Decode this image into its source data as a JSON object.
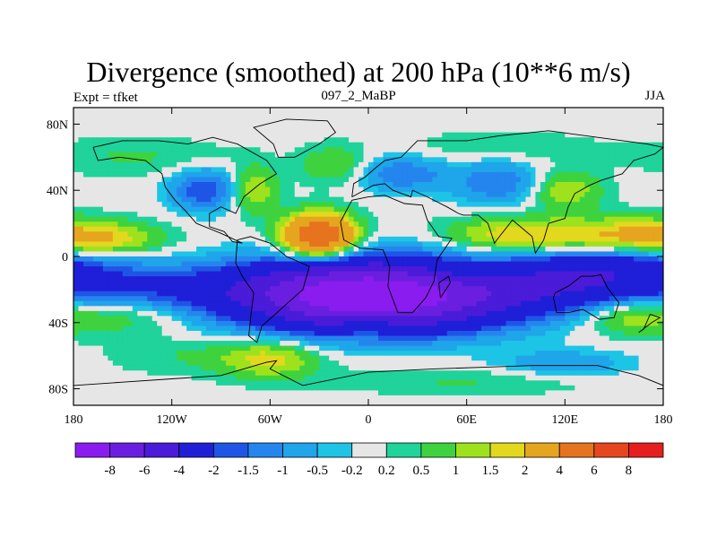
{
  "title": "Divergence (smoothed) at 200 hPa (10**6 m/s)",
  "subtitle_left": "Expt = tfket",
  "subtitle_center": "097_2_MaBP",
  "subtitle_right": "JJA",
  "chart_data": {
    "type": "heatmap",
    "title": "Divergence (smoothed) at 200 hPa (10**6 m/s)",
    "xlim": [
      -180,
      180
    ],
    "ylim": [
      -90,
      90
    ],
    "x_ticks": [
      {
        "value": -180,
        "label": "180"
      },
      {
        "value": -120,
        "label": "120W"
      },
      {
        "value": -60,
        "label": "60W"
      },
      {
        "value": 0,
        "label": "0"
      },
      {
        "value": 60,
        "label": "60E"
      },
      {
        "value": 120,
        "label": "120E"
      },
      {
        "value": 180,
        "label": "180"
      }
    ],
    "y_ticks": [
      {
        "value": 80,
        "label": "80N"
      },
      {
        "value": 40,
        "label": "40N"
      },
      {
        "value": 0,
        "label": "0"
      },
      {
        "value": -40,
        "label": "40S"
      },
      {
        "value": -80,
        "label": "80S"
      }
    ],
    "colorbar": {
      "levels": [
        "-8",
        "-6",
        "-4",
        "-2",
        "-1.5",
        "-1",
        "-0.5",
        "-0.2",
        "0.2",
        "0.5",
        "1",
        "1.5",
        "2",
        "4",
        "6",
        "8"
      ],
      "colors": [
        "#8a1cf0",
        "#6a1fe0",
        "#4a1bd8",
        "#1f1fd8",
        "#1f55e6",
        "#2585ee",
        "#1fa5ea",
        "#1dc4e6",
        "#e6e6e6",
        "#1fd39a",
        "#3ed33e",
        "#9ee21e",
        "#e2d81e",
        "#e6a51e",
        "#e6731e",
        "#e6461e",
        "#e61e1e"
      ]
    },
    "features": [
      {
        "lon": 10,
        "lat": -28,
        "value": -6,
        "sx": 55,
        "sy": 13
      },
      {
        "lon": -15,
        "lat": -20,
        "value": -4,
        "sx": 50,
        "sy": 14
      },
      {
        "lon": 60,
        "lat": -15,
        "value": -2,
        "sx": 70,
        "sy": 12
      },
      {
        "lon": 130,
        "lat": -18,
        "value": -2,
        "sx": 50,
        "sy": 10
      },
      {
        "lon": -120,
        "lat": -20,
        "value": -1.5,
        "sx": 55,
        "sy": 10
      },
      {
        "lon": 150,
        "lat": -5,
        "value": -2,
        "sx": 40,
        "sy": 8
      },
      {
        "lon": -30,
        "lat": 12,
        "value": 6,
        "sx": 15,
        "sy": 9
      },
      {
        "lon": 90,
        "lat": 12,
        "value": 2,
        "sx": 30,
        "sy": 8
      },
      {
        "lon": 160,
        "lat": 12,
        "value": 2,
        "sx": 30,
        "sy": 8
      },
      {
        "lon": -160,
        "lat": 10,
        "value": 1.5,
        "sx": 25,
        "sy": 7
      },
      {
        "lon": 60,
        "lat": -10,
        "value": 1.5,
        "sx": 25,
        "sy": 6
      },
      {
        "lon": 0,
        "lat": -40,
        "value": 1.5,
        "sx": 15,
        "sy": 6
      },
      {
        "lon": 160,
        "lat": -35,
        "value": 1.5,
        "sx": 20,
        "sy": 8
      },
      {
        "lon": -150,
        "lat": -35,
        "value": 1,
        "sx": 30,
        "sy": 8
      },
      {
        "lon": -100,
        "lat": 40,
        "value": -2,
        "sx": 15,
        "sy": 9
      },
      {
        "lon": -70,
        "lat": 40,
        "value": 1.5,
        "sx": 10,
        "sy": 10
      },
      {
        "lon": 20,
        "lat": 50,
        "value": -1.5,
        "sx": 20,
        "sy": 8
      },
      {
        "lon": 80,
        "lat": 45,
        "value": -1.5,
        "sx": 20,
        "sy": 10
      },
      {
        "lon": 120,
        "lat": 40,
        "value": 1.5,
        "sx": 15,
        "sy": 8
      },
      {
        "lon": -20,
        "lat": 55,
        "value": 1,
        "sx": 15,
        "sy": 8
      },
      {
        "lon": -140,
        "lat": 60,
        "value": 0.5,
        "sx": 40,
        "sy": 8
      },
      {
        "lon": 80,
        "lat": 65,
        "value": 0.5,
        "sx": 40,
        "sy": 7
      },
      {
        "lon": -100,
        "lat": -60,
        "value": 0.5,
        "sx": 40,
        "sy": 8
      },
      {
        "lon": 120,
        "lat": -65,
        "value": -1,
        "sx": 30,
        "sy": 6
      },
      {
        "lon": -60,
        "lat": -62,
        "value": 1.5,
        "sx": 20,
        "sy": 8
      },
      {
        "lon": 60,
        "lat": -75,
        "value": 0.5,
        "sx": 60,
        "sy": 6
      }
    ],
    "background_value": 0.05
  }
}
